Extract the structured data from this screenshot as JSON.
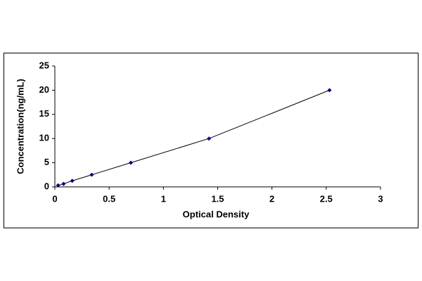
{
  "chart_data": {
    "type": "scatter",
    "xlabel": "Optical Density",
    "ylabel": "Concentration(ng/mL)",
    "x": [
      0.03,
      0.08,
      0.16,
      0.34,
      0.7,
      1.42,
      2.53
    ],
    "values": [
      0.31,
      0.625,
      1.25,
      2.5,
      5,
      10,
      20
    ],
    "color": "#000080",
    "line_color": "#000000",
    "connect": true,
    "xlim": [
      0,
      3
    ],
    "xticks": [
      0,
      0.5,
      1,
      1.5,
      2,
      2.5,
      3
    ],
    "ylim": [
      0,
      25
    ],
    "yticks": [
      0,
      5,
      10,
      15,
      20,
      25
    ],
    "grid": false
  }
}
